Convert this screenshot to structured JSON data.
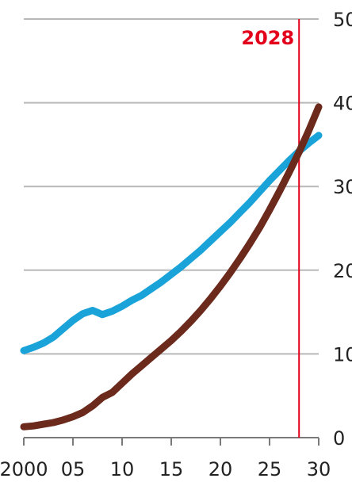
{
  "chart_data": {
    "type": "line",
    "title": "",
    "xlabel": "",
    "ylabel": "",
    "xlim": [
      2000,
      2030
    ],
    "ylim": [
      0,
      50
    ],
    "grid": true,
    "x_tick_labels": [
      "2000",
      "05",
      "10",
      "15",
      "20",
      "25",
      "30"
    ],
    "x_tick_values": [
      2000,
      2005,
      2010,
      2015,
      2020,
      2025,
      2030
    ],
    "y_tick_labels": [
      "0",
      "10",
      "20",
      "30",
      "40",
      "50"
    ],
    "y_tick_values": [
      0,
      10,
      20,
      30,
      40,
      50
    ],
    "y_axis_side": "right",
    "series": [
      {
        "color": "#1aa3d9",
        "x": [
          2000,
          2001,
          2002,
          2003,
          2004,
          2005,
          2006,
          2007,
          2008,
          2009,
          2010,
          2011,
          2012,
          2013,
          2014,
          2015,
          2016,
          2017,
          2018,
          2019,
          2020,
          2021,
          2022,
          2023,
          2024,
          2025,
          2026,
          2027,
          2028,
          2029,
          2030
        ],
        "values": [
          10.4,
          10.8,
          11.3,
          12.0,
          13.0,
          14.0,
          14.8,
          15.2,
          14.7,
          15.1,
          15.7,
          16.4,
          17.0,
          17.8,
          18.6,
          19.5,
          20.4,
          21.4,
          22.4,
          23.5,
          24.6,
          25.7,
          26.9,
          28.1,
          29.4,
          30.7,
          31.9,
          33.1,
          34.2,
          35.2,
          36.1
        ]
      },
      {
        "color": "#6b2a1c",
        "x": [
          2000,
          2001,
          2002,
          2003,
          2004,
          2005,
          2006,
          2007,
          2008,
          2009,
          2010,
          2011,
          2012,
          2013,
          2014,
          2015,
          2016,
          2017,
          2018,
          2019,
          2020,
          2021,
          2022,
          2023,
          2024,
          2025,
          2026,
          2027,
          2028,
          2029,
          2030
        ],
        "values": [
          1.3,
          1.4,
          1.6,
          1.8,
          2.1,
          2.5,
          3.0,
          3.8,
          4.8,
          5.4,
          6.5,
          7.6,
          8.6,
          9.6,
          10.6,
          11.6,
          12.7,
          13.9,
          15.2,
          16.6,
          18.1,
          19.7,
          21.4,
          23.2,
          25.1,
          27.2,
          29.4,
          31.7,
          34.1,
          36.7,
          39.5
        ]
      }
    ],
    "annotations": [
      {
        "type": "vline",
        "x": 2028,
        "label": "2028",
        "color": "#e3001b"
      }
    ]
  }
}
